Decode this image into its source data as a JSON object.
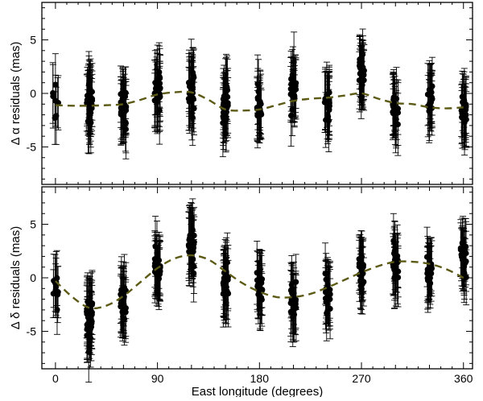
{
  "chart_data": [
    {
      "type": "scatter",
      "panel": "top",
      "ylabel": "Δ α residuals (mas)",
      "xlim": [
        -12,
        368
      ],
      "ylim": [
        -8.5,
        8.5
      ],
      "yticks": [
        -5,
        0,
        5
      ],
      "grid": false,
      "series": [
        {
          "kind": "points_with_error_bars",
          "clusters": [
            {
              "x": 0,
              "count": 8,
              "center": -0.8,
              "spread": 1.4,
              "err": 2.6
            },
            {
              "x": 30,
              "count": 40,
              "center": -1.0,
              "spread": 1.7,
              "err": 2.8
            },
            {
              "x": 60,
              "count": 30,
              "center": -1.3,
              "spread": 1.6,
              "err": 2.7
            },
            {
              "x": 90,
              "count": 30,
              "center": 0.2,
              "spread": 1.5,
              "err": 2.8
            },
            {
              "x": 120,
              "count": 30,
              "center": 0.3,
              "spread": 1.6,
              "err": 2.7
            },
            {
              "x": 150,
              "count": 30,
              "center": -1.3,
              "spread": 1.6,
              "err": 2.9
            },
            {
              "x": 180,
              "count": 24,
              "center": -1.5,
              "spread": 1.5,
              "err": 2.7
            },
            {
              "x": 210,
              "count": 24,
              "center": 0.2,
              "spread": 1.6,
              "err": 2.6
            },
            {
              "x": 240,
              "count": 24,
              "center": -1.2,
              "spread": 1.4,
              "err": 2.7
            },
            {
              "x": 270,
              "count": 30,
              "center": 1.8,
              "spread": 1.2,
              "err": 2.6
            },
            {
              "x": 300,
              "count": 24,
              "center": -1.3,
              "spread": 1.3,
              "err": 2.7
            },
            {
              "x": 330,
              "count": 24,
              "center": -0.7,
              "spread": 1.3,
              "err": 2.6
            },
            {
              "x": 360,
              "count": 24,
              "center": -1.6,
              "spread": 1.4,
              "err": 2.7
            }
          ]
        },
        {
          "kind": "model_curve",
          "x": [
            0,
            15,
            30,
            45,
            60,
            75,
            90,
            105,
            120,
            135,
            150,
            165,
            180,
            195,
            210,
            225,
            240,
            255,
            270,
            285,
            300,
            315,
            330,
            345,
            360
          ],
          "y": [
            -1.1,
            -1.15,
            -1.15,
            -1.1,
            -1.0,
            -0.6,
            -0.1,
            0.1,
            0.1,
            -0.6,
            -1.5,
            -1.6,
            -1.5,
            -1.1,
            -0.7,
            -0.5,
            -0.4,
            -0.2,
            0.0,
            -0.5,
            -0.9,
            -1.0,
            -1.3,
            -1.4,
            -1.3
          ],
          "color": "#5c5a14",
          "dash": "dashed"
        }
      ]
    },
    {
      "type": "scatter",
      "panel": "bottom",
      "ylabel": "Δ δ residuals (mas)",
      "xlabel": "East longitude (degrees)",
      "xlim": [
        -12,
        368
      ],
      "ylim": [
        -8.5,
        8.5
      ],
      "yticks": [
        -5,
        0,
        5
      ],
      "xticks": [
        0,
        90,
        180,
        270,
        360
      ],
      "grid": false,
      "series": [
        {
          "kind": "points_with_error_bars",
          "clusters": [
            {
              "x": 0,
              "count": 10,
              "center": -1.5,
              "spread": 2.0,
              "err": 2.6
            },
            {
              "x": 30,
              "count": 40,
              "center": -3.5,
              "spread": 1.6,
              "err": 2.8
            },
            {
              "x": 60,
              "count": 30,
              "center": -2.0,
              "spread": 1.7,
              "err": 2.7
            },
            {
              "x": 90,
              "count": 30,
              "center": 1.2,
              "spread": 1.4,
              "err": 2.7
            },
            {
              "x": 120,
              "count": 30,
              "center": 3.0,
              "spread": 1.3,
              "err": 2.8
            },
            {
              "x": 150,
              "count": 30,
              "center": -0.5,
              "spread": 1.5,
              "err": 2.8
            },
            {
              "x": 180,
              "count": 24,
              "center": -0.8,
              "spread": 1.4,
              "err": 2.7
            },
            {
              "x": 210,
              "count": 24,
              "center": -2.3,
              "spread": 1.6,
              "err": 2.8
            },
            {
              "x": 240,
              "count": 24,
              "center": -1.5,
              "spread": 1.5,
              "err": 2.7
            },
            {
              "x": 270,
              "count": 24,
              "center": 0.5,
              "spread": 1.0,
              "err": 2.6
            },
            {
              "x": 300,
              "count": 24,
              "center": 1.3,
              "spread": 1.3,
              "err": 2.7
            },
            {
              "x": 330,
              "count": 24,
              "center": 0.6,
              "spread": 1.2,
              "err": 2.7
            },
            {
              "x": 360,
              "count": 24,
              "center": 2.0,
              "spread": 1.6,
              "err": 2.6
            }
          ]
        },
        {
          "kind": "model_curve",
          "x": [
            0,
            15,
            30,
            45,
            60,
            75,
            90,
            105,
            120,
            135,
            150,
            165,
            180,
            195,
            210,
            225,
            240,
            255,
            270,
            285,
            300,
            315,
            330,
            345,
            360
          ],
          "y": [
            -0.3,
            -1.8,
            -2.8,
            -2.6,
            -1.7,
            -0.4,
            0.9,
            1.8,
            2.1,
            1.7,
            0.6,
            -0.5,
            -1.3,
            -1.8,
            -1.8,
            -1.5,
            -0.9,
            -0.2,
            0.5,
            1.1,
            1.5,
            1.5,
            1.3,
            0.8,
            0.0
          ],
          "color": "#5c5a14",
          "dash": "dashed"
        }
      ]
    }
  ]
}
